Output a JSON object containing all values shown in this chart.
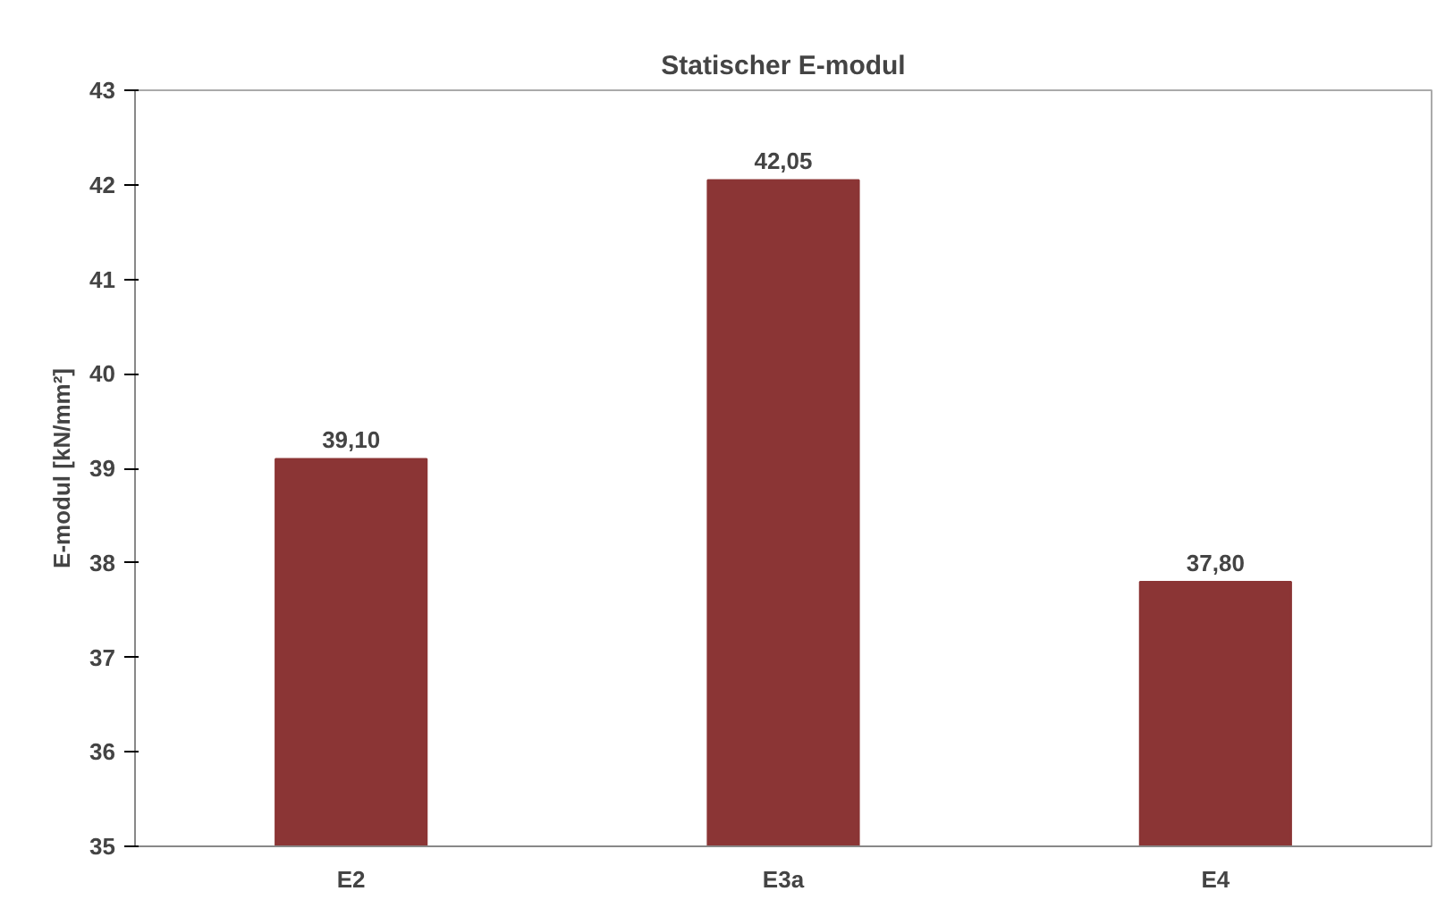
{
  "chart_data": {
    "type": "bar",
    "title": "Statischer E-modul",
    "ylabel": "E-modul [kN/mm²]",
    "categories": [
      "E2",
      "E3a",
      "E4"
    ],
    "values": [
      39.1,
      42.05,
      37.8
    ],
    "value_labels": [
      "39,10",
      "42,05",
      "37,80"
    ],
    "color": "#8b3535",
    "ylim": [
      35,
      43
    ],
    "yticks": [
      35,
      36,
      37,
      38,
      39,
      40,
      41,
      42,
      43
    ],
    "grid": false
  }
}
